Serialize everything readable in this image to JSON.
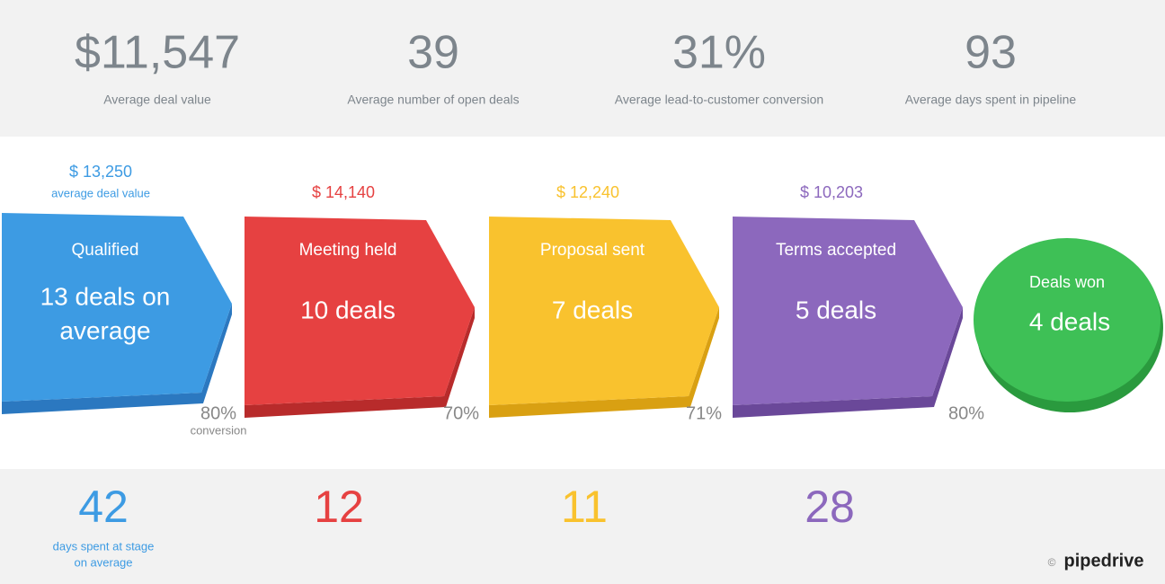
{
  "summary": [
    {
      "value": "$11,547",
      "label": "Average deal value"
    },
    {
      "value": "39",
      "label": "Average number of open deals"
    },
    {
      "value": "31%",
      "label": "Average lead-to-customer conversion"
    },
    {
      "value": "93",
      "label": "Average days spent in pipeline"
    }
  ],
  "stages": [
    {
      "name": "Qualified",
      "amount": "$ 13,250",
      "amount_label": "average deal value",
      "deals": [
        "13 deals on",
        "average"
      ],
      "conversion": "80%",
      "conversion_label": "conversion",
      "days": "42",
      "days_label": [
        "days spent at stage",
        "on average"
      ],
      "color": "#3d9be3",
      "shade": "#2b78c0"
    },
    {
      "name": "Meeting held",
      "amount": "$ 14,140",
      "deals": [
        "10 deals"
      ],
      "conversion": "70%",
      "days": "12",
      "color": "#e64141",
      "shade": "#b82b2b"
    },
    {
      "name": "Proposal sent",
      "amount": "$ 12,240",
      "deals": [
        "7 deals"
      ],
      "conversion": "71%",
      "days": "11",
      "color": "#f9c22e",
      "shade": "#d9a012"
    },
    {
      "name": "Terms accepted",
      "amount": "$ 10,203",
      "deals": [
        "5 deals"
      ],
      "conversion": "80%",
      "days": "28",
      "color": "#8c68bd",
      "shade": "#6a4899"
    },
    {
      "name": "Deals won",
      "deals": [
        "4 deals"
      ],
      "color": "#3ec056",
      "shade": "#2a9a3e"
    }
  ],
  "footer": {
    "copyright": "©",
    "brand": "pipedrive"
  }
}
